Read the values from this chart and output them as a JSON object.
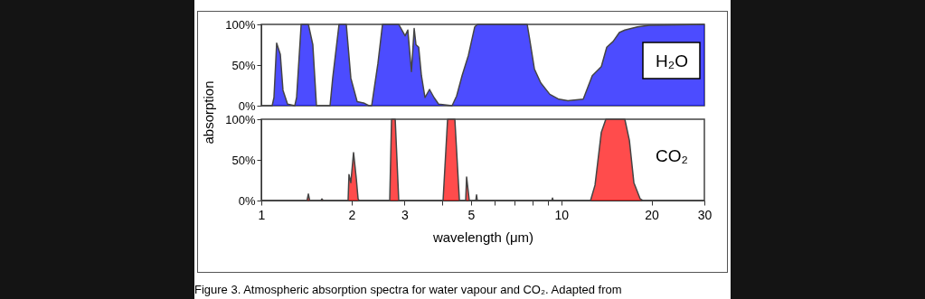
{
  "chart_data": [
    {
      "type": "area",
      "ylabel": "absorption",
      "xlim": [
        1,
        30
      ],
      "log": "x",
      "ylim": [
        0,
        100
      ],
      "tick_labels": "y",
      "grid": false,
      "legend": false,
      "yticks": [
        {
          "value": 0,
          "label": "0%"
        },
        {
          "value": 50,
          "label": "50%"
        },
        {
          "value": 100,
          "label": "100%"
        }
      ],
      "series": [
        {
          "name": "H₂O",
          "color": "#0000ff",
          "x": [
            1.0,
            1.087,
            1.102,
            1.125,
            1.157,
            1.181,
            1.223,
            1.293,
            1.311,
            1.358,
            1.435,
            1.485,
            1.527,
            1.695,
            1.73,
            1.816,
            1.92,
            1.988,
            2.087,
            2.207,
            2.285,
            2.333,
            2.448,
            2.535,
            2.872,
            3.016,
            3.079,
            3.166,
            3.233,
            3.278,
            3.347,
            3.418,
            3.513,
            3.637,
            3.766,
            3.899,
            4.326,
            4.479,
            4.67,
            4.903,
            5.147,
            5.254,
            7.7,
            7.861,
            8.139,
            8.544,
            9.157,
            9.815,
            10.52,
            11.84,
            12.69,
            13.6,
            14.18,
            14.89,
            15.62,
            16.29,
            17.96,
            19.65,
            30
          ],
          "values": [
            0,
            0,
            10,
            77,
            63,
            19,
            2,
            0,
            10,
            100,
            100,
            75,
            0,
            0,
            34,
            100,
            100,
            34,
            5,
            3,
            0,
            0,
            52,
            100,
            100,
            86,
            93,
            42,
            95,
            75,
            72,
            37,
            10,
            20,
            10,
            2,
            0,
            12,
            37,
            62,
            97,
            100,
            100,
            80,
            45,
            28,
            14,
            8,
            6,
            8,
            37,
            48,
            72,
            79,
            90,
            93,
            97,
            99,
            100
          ]
        }
      ]
    },
    {
      "type": "area",
      "xlabel": "wavelength (μm)",
      "xlim": [
        1,
        30
      ],
      "log": "x",
      "ylim": [
        0,
        100
      ],
      "grid": false,
      "legend": false,
      "xticks": [
        1,
        2,
        3,
        {
          "value": 4,
          "label": null
        },
        5,
        {
          "value": 6,
          "label": null
        },
        {
          "value": 7,
          "label": null
        },
        {
          "value": 8,
          "label": null
        },
        {
          "value": 9,
          "label": null
        },
        10,
        20,
        30
      ],
      "yticks": [
        {
          "value": 0,
          "label": "0%"
        },
        {
          "value": 50,
          "label": "50%"
        },
        {
          "value": 100,
          "label": "100%"
        }
      ],
      "annotations": [
        "Figure 3.  Atmospheric absorption spectra for water vapour and CO₂. Adapted from"
      ],
      "series": [
        {
          "name": "CO₂",
          "color": "#ff0000",
          "x": [
            1.0,
            1.42,
            1.435,
            1.45,
            1.58,
            1.592,
            1.61,
            1.947,
            1.96,
            1.988,
            2.03,
            2.073,
            2.102,
            2.12,
            2.68,
            2.718,
            2.795,
            2.872,
            4.036,
            4.179,
            4.418,
            4.575,
            4.801,
            4.835,
            4.936,
            5.19,
            5.219,
            5.25,
            9.3,
            9.35,
            9.4,
            12.52,
            12.96,
            13.6,
            14.08,
            16.29,
            16.87,
            17.46,
            18.33,
            18.7,
            30
          ],
          "values": [
            0,
            0,
            8,
            0,
            0,
            2,
            0,
            0,
            32,
            22,
            59,
            27,
            2,
            0,
            0,
            100,
            100,
            0,
            0,
            100,
            100,
            0,
            0,
            29,
            0,
            0,
            7,
            0,
            0,
            3,
            0,
            0,
            19,
            84,
            100,
            100,
            74,
            22,
            2,
            0,
            0
          ]
        }
      ]
    }
  ]
}
